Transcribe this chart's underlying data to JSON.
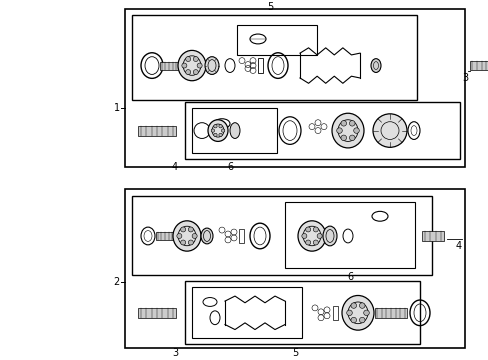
{
  "bg_color": "#ffffff",
  "line_color": "#000000",
  "fig_bg": "#ffffff"
}
